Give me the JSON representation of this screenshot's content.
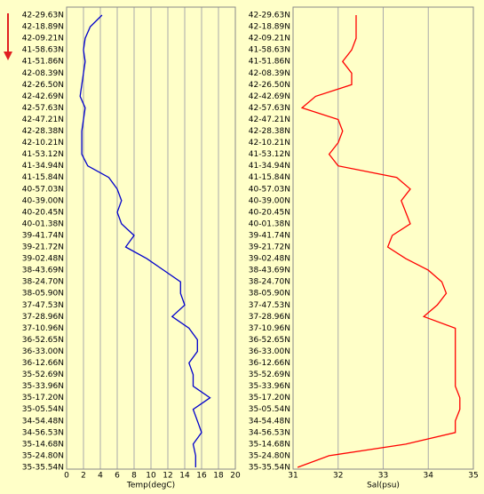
{
  "chart_data": [
    {
      "type": "line",
      "orientation": "horizontal",
      "xlabel": "Temp(degC)",
      "categories": [
        "42-29.63N",
        "42-18.89N",
        "42-09.21N",
        "41-58.63N",
        "41-51.86N",
        "42-08.39N",
        "42-26.50N",
        "42-42.69N",
        "42-57.63N",
        "42-47.21N",
        "42-28.38N",
        "42-10.21N",
        "41-53.12N",
        "41-34.94N",
        "41-15.84N",
        "40-57.03N",
        "40-39.00N",
        "40-20.45N",
        "40-01.38N",
        "39-41.74N",
        "39-21.72N",
        "39-02.48N",
        "38-43.69N",
        "38-24.70N",
        "38-05.90N",
        "37-47.53N",
        "37-28.96N",
        "37-10.96N",
        "36-52.65N",
        "36-33.00N",
        "36-12.66N",
        "35-52.69N",
        "35-33.96N",
        "35-17.20N",
        "35-05.54N",
        "34-54.48N",
        "34-56.53N",
        "35-14.68N",
        "35-24.80N",
        "35-35.54N"
      ],
      "values": [
        4.2,
        2.8,
        2.2,
        2.0,
        2.2,
        2.0,
        1.8,
        1.6,
        2.2,
        2.0,
        1.8,
        1.8,
        1.8,
        2.5,
        5.0,
        6.0,
        6.5,
        6.0,
        6.5,
        8.0,
        7.0,
        9.5,
        11.5,
        13.5,
        13.5,
        14.0,
        12.5,
        14.5,
        15.5,
        15.5,
        14.5,
        15.0,
        15.0,
        17.0,
        15.0,
        15.5,
        16.0,
        15.0,
        15.3,
        15.3
      ],
      "color": "#0000cc",
      "xlim": [
        0,
        20
      ],
      "xticks": [
        0,
        2,
        4,
        6,
        8,
        10,
        12,
        14,
        16,
        18,
        20
      ],
      "grid": true
    },
    {
      "type": "line",
      "orientation": "horizontal",
      "xlabel": "Sal(psu)",
      "categories": [
        "42-29.63N",
        "42-18.89N",
        "42-09.21N",
        "41-58.63N",
        "41-51.86N",
        "42-08.39N",
        "42-26.50N",
        "42-42.69N",
        "42-57.63N",
        "42-47.21N",
        "42-28.38N",
        "42-10.21N",
        "41-53.12N",
        "41-34.94N",
        "41-15.84N",
        "40-57.03N",
        "40-39.00N",
        "40-20.45N",
        "40-01.38N",
        "39-41.74N",
        "39-21.72N",
        "39-02.48N",
        "38-43.69N",
        "38-24.70N",
        "38-05.90N",
        "37-47.53N",
        "37-28.96N",
        "37-10.96N",
        "36-52.65N",
        "36-33.00N",
        "36-12.66N",
        "35-52.69N",
        "35-33.96N",
        "35-17.20N",
        "35-05.54N",
        "34-54.48N",
        "34-56.53N",
        "35-14.68N",
        "35-24.80N",
        "35-35.54N"
      ],
      "values": [
        32.4,
        32.4,
        32.4,
        32.3,
        32.1,
        32.3,
        32.3,
        31.5,
        31.2,
        32.0,
        32.1,
        32.0,
        31.8,
        32.0,
        33.3,
        33.6,
        33.4,
        33.5,
        33.6,
        33.2,
        33.1,
        33.5,
        34.0,
        34.3,
        34.4,
        34.2,
        33.9,
        34.6,
        34.6,
        34.6,
        34.6,
        34.6,
        34.6,
        34.7,
        34.7,
        34.6,
        34.6,
        33.5,
        31.8,
        31.1
      ],
      "color": "#ff0000",
      "xlim": [
        31,
        35
      ],
      "xticks": [
        31,
        32,
        33,
        34,
        35
      ],
      "grid": true
    }
  ]
}
